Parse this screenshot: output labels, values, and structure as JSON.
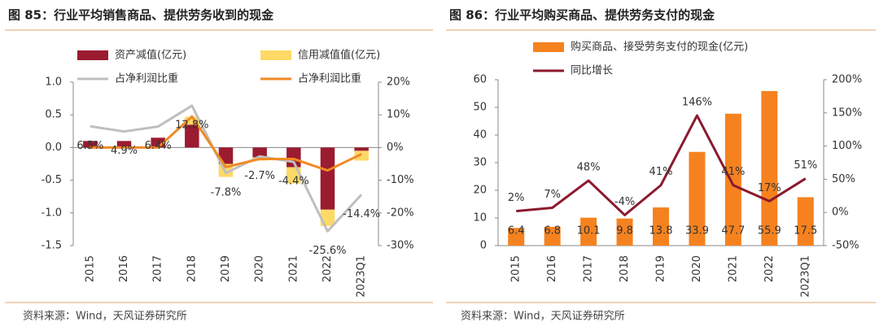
{
  "chart_data": [
    {
      "type": "bar",
      "stacked": true,
      "title": "图 85：行业平均销售商品、提供劳务收到的现金",
      "source": "资料来源：Wind，天风证券研究所",
      "categories": [
        "2015",
        "2016",
        "2017",
        "2018",
        "2019",
        "2020",
        "2021",
        "2022",
        "2023Q1"
      ],
      "ylim": [
        -1.5,
        1.0
      ],
      "yticks": [
        -1.5,
        {
          "value": -1.0,
          "label": "-1.0"
        },
        -0.5,
        {
          "value": 0,
          "label": "0.0"
        },
        0.5,
        {
          "value": 1.0,
          "label": "1.0"
        }
      ],
      "y2lim": [
        -30,
        20
      ],
      "y2ticks": [
        {
          "value": -30,
          "label": "-30%"
        },
        {
          "value": -20,
          "label": "-20%"
        },
        {
          "value": -10,
          "label": "-10%"
        },
        {
          "value": 0,
          "label": "0%"
        },
        {
          "value": 10,
          "label": "10%"
        },
        {
          "value": 20,
          "label": "20%"
        }
      ],
      "series": [
        {
          "name": "资产减值(亿元)",
          "kind": "bar",
          "color": "#9b1b30",
          "values": [
            0.1,
            0.1,
            0.15,
            0.35,
            -0.25,
            -0.15,
            -0.3,
            -0.95,
            -0.05
          ]
        },
        {
          "name": "信用减值值(亿元)",
          "kind": "bar",
          "color": "#ffd966",
          "values": [
            0,
            0,
            0,
            0.12,
            -0.2,
            -0.05,
            -0.25,
            -0.25,
            -0.15
          ]
        },
        {
          "name": "占净利润比重",
          "kind": "line",
          "axis": "y2",
          "color": "#bfbfbf",
          "values": [
            6.5,
            4.9,
            6.4,
            12.8,
            -7.8,
            -2.7,
            -4.4,
            -25.6,
            -14.4
          ],
          "value_labels": [
            "6.5%",
            "4.9%",
            "6.4%",
            "12.8%",
            "-7.8%",
            "-2.7%",
            "-4.4%",
            "-25.6%",
            "-14.4%"
          ]
        },
        {
          "name": "占净利润比重",
          "kind": "line",
          "axis": "y2",
          "color": "#f08a24",
          "values": [
            0,
            0,
            0,
            9.5,
            -6,
            -3.5,
            -3.5,
            -7,
            -2
          ]
        }
      ]
    },
    {
      "type": "bar",
      "stacked": false,
      "title": "图 86：行业平均购买商品、提供劳务支付的现金",
      "source": "资料来源：Wind，天风证券研究所",
      "categories": [
        "2015",
        "2016",
        "2017",
        "2018",
        "2019",
        "2020",
        "2021",
        "2022",
        "2023Q1"
      ],
      "ylim": [
        0,
        60
      ],
      "yticks": [
        0,
        10,
        20,
        30,
        40,
        50,
        60
      ],
      "y2lim": [
        -50,
        200
      ],
      "y2ticks": [
        {
          "value": -50,
          "label": "-50%"
        },
        {
          "value": 0,
          "label": "0%"
        },
        {
          "value": 50,
          "label": "50%"
        },
        {
          "value": 100,
          "label": "100%"
        },
        {
          "value": 150,
          "label": "150%"
        },
        {
          "value": 200,
          "label": "200%"
        }
      ],
      "series": [
        {
          "name": "购买商品、接受劳务支付的现金(亿元)",
          "kind": "bar",
          "color": "#f5821f",
          "data_labels": true,
          "values": [
            6.4,
            6.8,
            10.1,
            9.8,
            13.8,
            33.9,
            47.7,
            55.9,
            17.5
          ]
        },
        {
          "name": "同比增长",
          "kind": "line",
          "axis": "y2",
          "color": "#8b1a2e",
          "values": [
            2,
            7,
            48,
            -4,
            41,
            146,
            41,
            17,
            51
          ],
          "value_labels": [
            "2%",
            "7%",
            "48%",
            "-4%",
            "41%",
            "146%",
            "41%",
            "17%",
            "51%"
          ]
        }
      ]
    }
  ]
}
